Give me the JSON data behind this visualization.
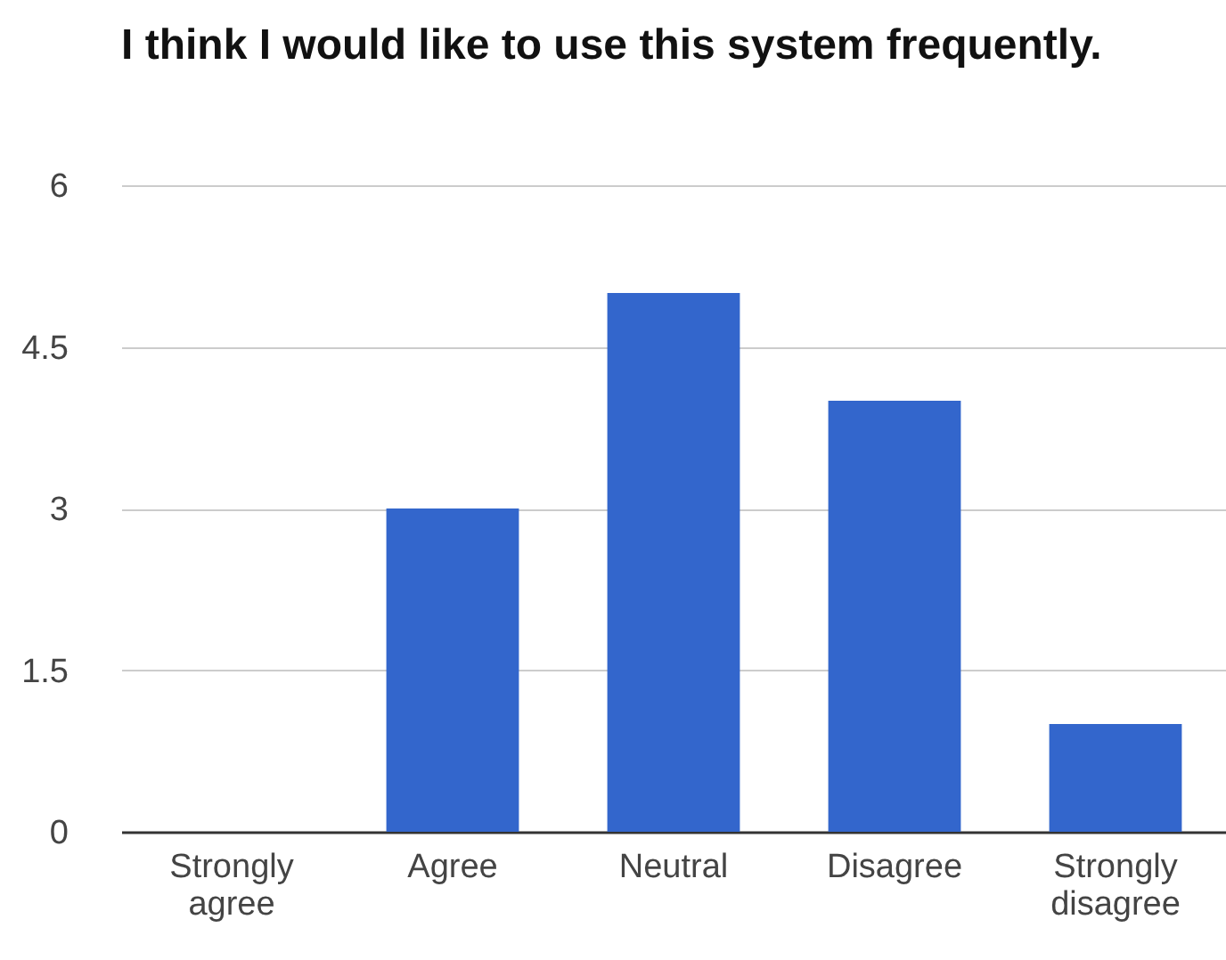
{
  "chart_data": {
    "type": "bar",
    "title": "I think I would like to use this system frequently.",
    "categories": [
      "Strongly agree",
      "Agree",
      "Neutral",
      "Disagree",
      "Strongly disagree"
    ],
    "values": [
      0,
      3,
      5,
      4,
      1
    ],
    "color": "#3366cc",
    "ylim": [
      0,
      6
    ],
    "yticks": [
      0,
      1.5,
      3,
      4.5,
      6
    ],
    "grid": "y"
  }
}
